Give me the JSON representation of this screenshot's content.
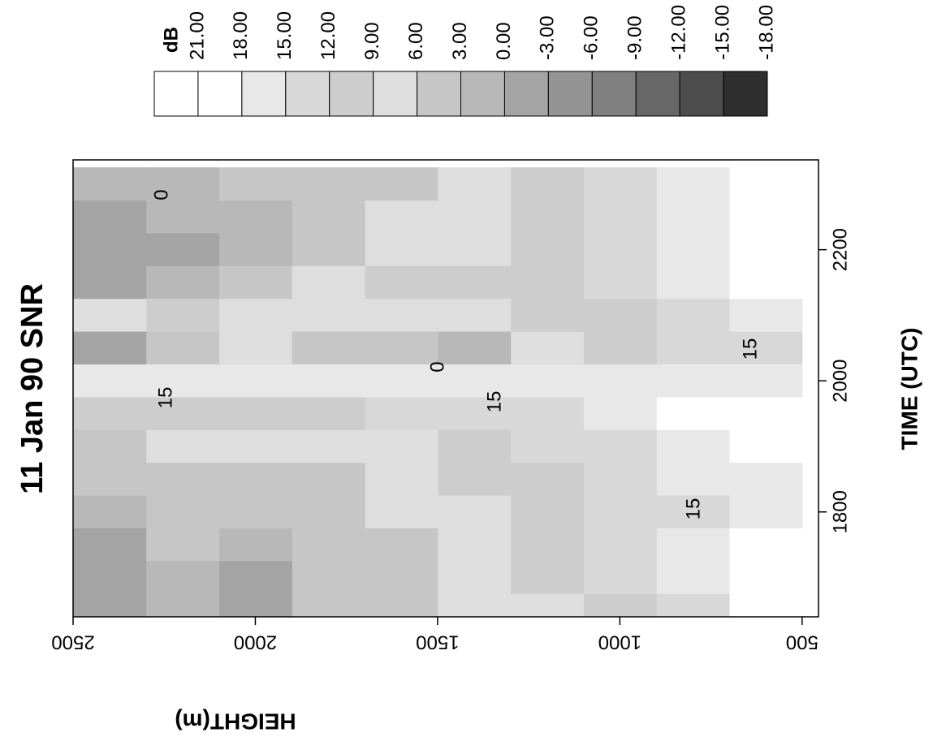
{
  "chart_data": {
    "type": "contour",
    "title": "11 Jan 90  SNR",
    "x_label": "TIME (UTC)",
    "y_label": "HEIGHT(m)",
    "x": [
      16.5,
      17.0,
      17.5,
      18.0,
      18.5,
      19.0,
      19.5,
      20.0,
      20.5,
      21.0,
      21.5,
      22.0,
      22.5,
      23.0
    ],
    "y": [
      600,
      800,
      1000,
      1200,
      1400,
      1600,
      1800,
      2000,
      2200,
      2400
    ],
    "z": [
      [
        18,
        14,
        11,
        8,
        6,
        4,
        3,
        -1,
        1,
        -2
      ],
      [
        20,
        16,
        13,
        9,
        6,
        4,
        3,
        -2,
        2,
        -1
      ],
      [
        19,
        15,
        12,
        9,
        7,
        4,
        3,
        2,
        3,
        -1
      ],
      [
        17,
        14,
        12,
        9,
        8,
        6,
        4,
        3,
        5,
        1
      ],
      [
        17,
        15,
        13,
        11,
        9,
        7,
        5,
        4,
        5,
        3
      ],
      [
        19,
        16,
        14,
        12,
        10,
        8,
        6,
        6,
        7,
        5
      ],
      [
        22,
        18,
        15,
        14,
        13,
        12,
        11,
        10,
        9,
        9
      ],
      [
        17,
        16,
        16,
        16,
        16,
        15,
        15,
        15,
        15,
        15
      ],
      [
        14,
        13,
        11,
        6,
        1,
        4,
        5,
        6,
        4,
        -1
      ],
      [
        17,
        14,
        11,
        9,
        8,
        8,
        7,
        8,
        9,
        6
      ],
      [
        21,
        17,
        12,
        10,
        9,
        9,
        7,
        4,
        2,
        -2
      ],
      [
        22,
        16,
        12,
        9,
        8,
        6,
        3,
        1,
        -1,
        -3
      ],
      [
        18,
        15,
        12,
        10,
        8,
        6,
        3,
        2,
        1,
        -2
      ],
      [
        21,
        15,
        13,
        10,
        8,
        5,
        3,
        3,
        2,
        1
      ]
    ],
    "xlim": [
      16.4,
      23.37
    ],
    "xticks": [
      {
        "value": 18,
        "label": "1800"
      },
      {
        "value": 20,
        "label": "2000"
      },
      {
        "value": 22,
        "label": "2200"
      }
    ],
    "ylim": [
      455,
      2500
    ],
    "yticks": [
      500,
      1000,
      1500,
      2000,
      2500
    ],
    "contour_labels": [
      0,
      15,
      15,
      0,
      15,
      15
    ],
    "colorbar": {
      "label": "dB",
      "levels": [
        {
          "value": 21,
          "label": "21.00"
        },
        {
          "value": 18,
          "label": "18.00"
        },
        {
          "value": 15,
          "label": "15.00"
        },
        {
          "value": 12,
          "label": "12.00"
        },
        {
          "value": 9,
          "label": "9.00"
        },
        {
          "value": 6,
          "label": "6.00"
        },
        {
          "value": 3,
          "label": "3.00"
        },
        {
          "value": 0,
          "label": "0.00"
        },
        {
          "value": -3,
          "label": "-3.00"
        },
        {
          "value": -6,
          "label": "-6.00"
        },
        {
          "value": -9,
          "label": "-9.00"
        },
        {
          "value": -12,
          "label": "-12.00"
        },
        {
          "value": -15,
          "label": "-15.00"
        },
        {
          "value": -18,
          "label": "-18.00"
        }
      ],
      "colors": [
        "#ffffff",
        "#ffffff",
        "#e8e8e8",
        "#d8d8d8",
        "#cdcdcd",
        "#dedede",
        "#c6c6c6",
        "#b8b8b8",
        "#a4a4a4",
        "#949494",
        "#808080",
        "#676767",
        "#4d4d4d",
        "#2e2e2e"
      ]
    }
  }
}
